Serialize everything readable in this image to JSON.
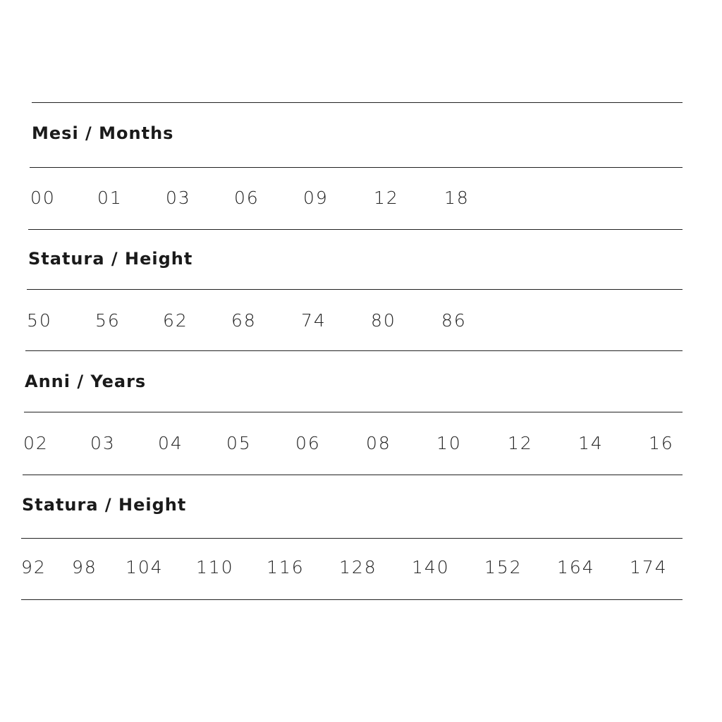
{
  "sections": [
    {
      "label": "Mesi / Months",
      "values": [
        "00",
        "01",
        "03",
        "06",
        "09",
        "12",
        "18"
      ]
    },
    {
      "label": "Statura / Height",
      "values": [
        "50",
        "56",
        "62",
        "68",
        "74",
        "80",
        "86"
      ]
    },
    {
      "label": "Anni / Years",
      "values": [
        "02",
        "03",
        "04",
        "05",
        "06",
        "08",
        "10",
        "12",
        "14",
        "16"
      ]
    },
    {
      "label": "Statura / Height",
      "values": [
        "92",
        "98",
        "104",
        "110",
        "116",
        "128",
        "140",
        "152",
        "164",
        "174"
      ]
    }
  ]
}
